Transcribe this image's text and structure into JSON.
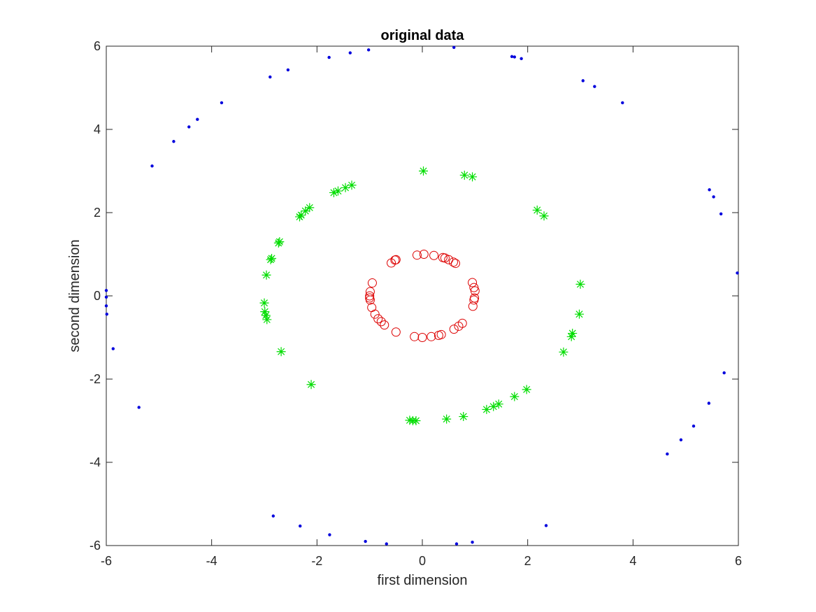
{
  "chart_data": {
    "type": "scatter",
    "title": "original data",
    "xlabel": "first dimension",
    "ylabel": "second dimension",
    "xlim": [
      -6,
      6
    ],
    "ylim": [
      -6,
      6
    ],
    "xticks": [
      "-6",
      "-4",
      "-2",
      "0",
      "2",
      "4",
      "6"
    ],
    "yticks": [
      "-6",
      "-4",
      "-2",
      "0",
      "2",
      "4",
      "6"
    ],
    "grid": false,
    "series": [
      {
        "marker": "circle",
        "color": "#dd0000",
        "points": [
          [
            -0.1,
            0.98
          ],
          [
            0.03,
            1.0
          ],
          [
            0.22,
            0.97
          ],
          [
            0.39,
            0.92
          ],
          [
            0.43,
            0.91
          ],
          [
            0.5,
            0.87
          ],
          [
            0.59,
            0.81
          ],
          [
            0.63,
            0.78
          ],
          [
            -0.59,
            0.79
          ],
          [
            -0.52,
            0.86
          ],
          [
            -0.5,
            0.87
          ],
          [
            -0.95,
            0.31
          ],
          [
            -0.99,
            0.1
          ],
          [
            -1.0,
            0.0
          ],
          [
            -1.0,
            -0.05
          ],
          [
            -0.99,
            -0.1
          ],
          [
            -0.96,
            -0.28
          ],
          [
            -0.9,
            -0.44
          ],
          [
            -0.84,
            -0.55
          ],
          [
            -0.78,
            -0.62
          ],
          [
            -0.72,
            -0.7
          ],
          [
            -0.5,
            -0.87
          ],
          [
            -0.15,
            -0.98
          ],
          [
            0.0,
            -1.0
          ],
          [
            0.17,
            -0.98
          ],
          [
            0.31,
            -0.95
          ],
          [
            0.36,
            -0.93
          ],
          [
            0.6,
            -0.8
          ],
          [
            0.69,
            -0.73
          ],
          [
            0.76,
            -0.66
          ],
          [
            0.95,
            0.32
          ],
          [
            0.98,
            0.2
          ],
          [
            1.0,
            0.12
          ],
          [
            0.99,
            -0.05
          ],
          [
            0.98,
            -0.1
          ],
          [
            0.96,
            -0.25
          ]
        ]
      },
      {
        "marker": "asterisk",
        "color": "#00dd00",
        "points": [
          [
            0.02,
            3.0
          ],
          [
            0.8,
            2.9
          ],
          [
            0.95,
            2.86
          ],
          [
            -1.68,
            2.48
          ],
          [
            -1.6,
            2.52
          ],
          [
            -1.46,
            2.6
          ],
          [
            -1.34,
            2.66
          ],
          [
            -2.14,
            2.12
          ],
          [
            -2.22,
            2.04
          ],
          [
            -2.3,
            1.94
          ],
          [
            -2.33,
            1.9
          ],
          [
            2.18,
            2.06
          ],
          [
            2.31,
            1.92
          ],
          [
            -2.71,
            1.3
          ],
          [
            -2.73,
            1.27
          ],
          [
            -2.86,
            0.9
          ],
          [
            -2.88,
            0.87
          ],
          [
            -2.96,
            0.5
          ],
          [
            -3.0,
            -0.17
          ],
          [
            -2.99,
            -0.38
          ],
          [
            -2.97,
            -0.47
          ],
          [
            -2.95,
            -0.57
          ],
          [
            -2.68,
            -1.34
          ],
          [
            -2.11,
            -2.13
          ],
          [
            3.0,
            0.28
          ],
          [
            2.98,
            -0.44
          ],
          [
            2.85,
            -0.9
          ],
          [
            2.83,
            -0.98
          ],
          [
            2.68,
            -1.35
          ],
          [
            1.98,
            -2.25
          ],
          [
            1.75,
            -2.42
          ],
          [
            1.45,
            -2.6
          ],
          [
            1.35,
            -2.66
          ],
          [
            1.22,
            -2.73
          ],
          [
            0.78,
            -2.9
          ],
          [
            0.46,
            -2.96
          ],
          [
            -0.24,
            -2.99
          ],
          [
            -0.18,
            -3.0
          ],
          [
            -0.12,
            -3.0
          ]
        ]
      },
      {
        "marker": "dot",
        "color": "#0000dd",
        "points": [
          [
            -1.02,
            5.91
          ],
          [
            -1.37,
            5.84
          ],
          [
            -1.77,
            5.73
          ],
          [
            -2.55,
            5.43
          ],
          [
            -2.89,
            5.26
          ],
          [
            -3.81,
            4.64
          ],
          [
            -4.27,
            4.24
          ],
          [
            -4.43,
            4.06
          ],
          [
            -4.72,
            3.71
          ],
          [
            -5.13,
            3.12
          ],
          [
            0.6,
            5.97
          ],
          [
            1.7,
            5.75
          ],
          [
            1.75,
            5.74
          ],
          [
            1.88,
            5.7
          ],
          [
            3.05,
            5.17
          ],
          [
            3.27,
            5.03
          ],
          [
            3.8,
            4.64
          ],
          [
            5.45,
            2.55
          ],
          [
            5.53,
            2.38
          ],
          [
            5.67,
            1.97
          ],
          [
            5.98,
            0.55
          ],
          [
            -6.0,
            0.13
          ],
          [
            -6.0,
            -0.03
          ],
          [
            -6.0,
            -0.24
          ],
          [
            -5.99,
            -0.44
          ],
          [
            -5.87,
            -1.27
          ],
          [
            -5.38,
            -2.68
          ],
          [
            5.73,
            -1.85
          ],
          [
            5.44,
            -2.58
          ],
          [
            5.15,
            -3.13
          ],
          [
            4.91,
            -3.46
          ],
          [
            4.65,
            -3.8
          ],
          [
            2.35,
            -5.52
          ],
          [
            -2.83,
            -5.29
          ],
          [
            -2.32,
            -5.53
          ],
          [
            -1.76,
            -5.74
          ],
          [
            -1.08,
            -5.9
          ],
          [
            -0.68,
            -5.96
          ],
          [
            0.65,
            -5.96
          ],
          [
            0.95,
            -5.92
          ]
        ]
      }
    ]
  }
}
